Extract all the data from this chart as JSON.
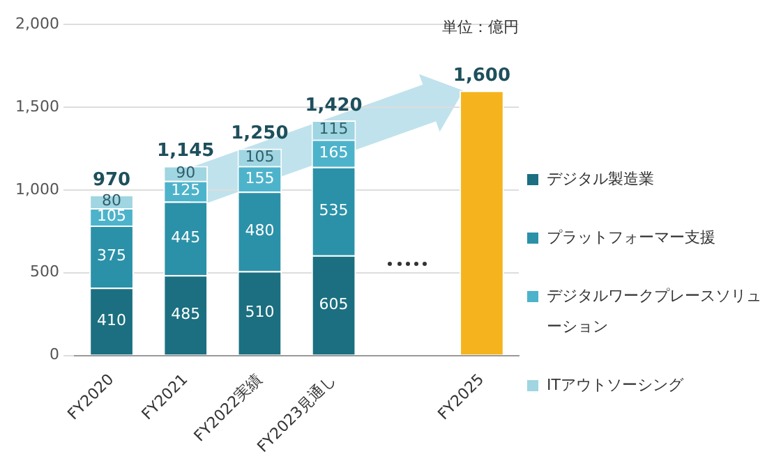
{
  "chart_data": {
    "type": "bar",
    "stacked": true,
    "categories": [
      "FY2020",
      "FY2021",
      "FY2022実績",
      "FY2023見通し",
      null,
      "FY2025"
    ],
    "series": [
      {
        "name": "デジタル製造業",
        "color": "#1b6f80",
        "values": [
          410,
          485,
          510,
          605,
          null,
          null
        ],
        "value_labels": [
          "410",
          "485",
          "510",
          "605",
          null,
          null
        ]
      },
      {
        "name": "プラットフォーマー支援",
        "color": "#2a91a8",
        "values": [
          375,
          445,
          480,
          535,
          null,
          null
        ],
        "value_labels": [
          "375",
          "445",
          "480",
          "535",
          null,
          null
        ]
      },
      {
        "name": "デジタルワークプレースソリューション",
        "color": "#4db3cb",
        "values": [
          105,
          125,
          155,
          165,
          null,
          null
        ],
        "value_labels": [
          "105",
          "125",
          "155",
          "165",
          null,
          null
        ]
      },
      {
        "name": "ITアウトソーシング",
        "color": "#a0d5e2",
        "values": [
          80,
          90,
          105,
          115,
          null,
          null
        ],
        "value_labels": [
          "80",
          "90",
          "105",
          "115",
          null,
          null
        ]
      },
      {
        "color": "#f5b41e",
        "values": [
          null,
          null,
          null,
          null,
          null,
          1600
        ],
        "value_labels": [
          null,
          null,
          null,
          null,
          null,
          null
        ]
      }
    ],
    "totals": [
      "970",
      "1,145",
      "1,250",
      "1,420",
      null,
      "1,600"
    ],
    "ylim": [
      0,
      2000
    ],
    "yticks": [
      0,
      500,
      {
        "value": 1000,
        "label": "1,000"
      },
      {
        "value": 1500,
        "label": "1,500"
      },
      {
        "value": 2000,
        "label": "2,000"
      }
    ],
    "grid": "y",
    "legend": "right",
    "annotations": [
      "単位：億円"
    ]
  }
}
